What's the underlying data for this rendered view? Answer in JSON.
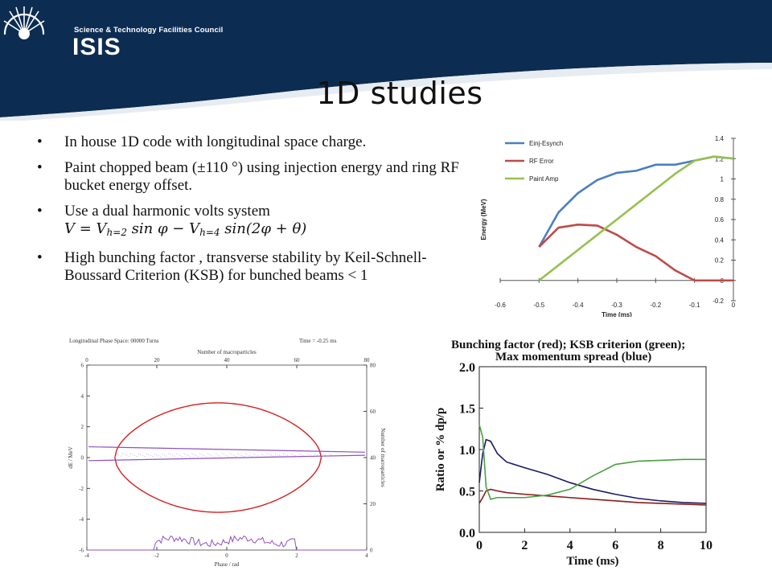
{
  "header": {
    "org_name": "Science & Technology Facilities Council",
    "org_short": "ISIS",
    "colors": {
      "navy": "#0c2c52",
      "navy_dark": "#082240",
      "white": "#ffffff"
    }
  },
  "slide": {
    "title": "1D studies",
    "bullets": [
      {
        "text": "In house 1D code with longitudinal space charge."
      },
      {
        "text": "Paint chopped beam (±110 °) using injection energy and ring RF bucket energy offset."
      },
      {
        "text": "Use a dual harmonic volts system"
      },
      {
        "text": "High bunching factor , transverse stability by Keil-Schnell-Boussard Criterion (KSB) for bunched beams < 1"
      }
    ],
    "bullet_symbol": "•",
    "equation": {
      "lhs": "V = V",
      "sub1": "h=2",
      "mid": " sin φ − V",
      "sub2": "h=4",
      "rhs": " sin(2φ + θ)"
    }
  },
  "chart_data": [
    {
      "type": "line",
      "x": [
        -0.5,
        -0.45,
        -0.4,
        -0.35,
        -0.3,
        -0.25,
        -0.2,
        -0.15,
        -0.1,
        -0.05,
        0.0
      ],
      "series": [
        {
          "name": "Einj-Esynch",
          "color": "#4a7fc0",
          "values": [
            0.33,
            0.67,
            0.86,
            0.99,
            1.06,
            1.08,
            1.14,
            1.14,
            1.18,
            1.22,
            1.2
          ]
        },
        {
          "name": "RF Error",
          "color": "#bf4a48",
          "values": [
            0.33,
            0.52,
            0.55,
            0.54,
            0.45,
            0.33,
            0.24,
            0.1,
            0.0,
            0.0,
            0.0
          ]
        },
        {
          "name": "Paint Amp",
          "color": "#96c04e",
          "values": [
            0.0,
            0.15,
            0.3,
            0.45,
            0.6,
            0.75,
            0.9,
            1.05,
            1.18,
            1.22,
            1.2
          ]
        }
      ],
      "xlabel": "Time (ms)",
      "ylabel": "Energy (MeV)",
      "xlim": [
        -0.6,
        0.0
      ],
      "ylim": [
        -0.2,
        1.4
      ],
      "x_ticks": [
        "-0.6",
        "-0.5",
        "-0.4",
        "-0.3",
        "-0.2",
        "-0.1",
        "0"
      ],
      "y_ticks": [
        "-0.2",
        "0",
        "0.2",
        "0.4",
        "0.6",
        "0.8",
        "1",
        "1.2",
        "1.4"
      ],
      "legend": "top-left",
      "grid": false
    },
    {
      "type": "scatter",
      "title": "Longitudinal Phase Space: 00000 Turns",
      "time_label": "Time = -0.25 ms",
      "xlabel": "Phase / rad",
      "ylabel": "dE / MeV",
      "top_label": "Number of macroparticles",
      "right_label": "Number of macroparticles",
      "xlim": [
        -4,
        4
      ],
      "ylim": [
        -6,
        6
      ],
      "x_ticks": [
        "-4",
        "-2",
        "0",
        "2",
        "4"
      ],
      "y_ticks": [
        "-6",
        "-4",
        "-2",
        "0",
        "2",
        "4",
        "6"
      ],
      "top_ticks": [
        "0",
        "20",
        "40",
        "60",
        "80"
      ],
      "right_ticks": [
        "0",
        "20",
        "40",
        "60",
        "80"
      ],
      "bucket_color": "#d42020",
      "beam_color": "#9050c0",
      "grid": false
    },
    {
      "type": "line",
      "title": "Bunching factor (red); KSB criterion (green);",
      "subtitle": "Max momentum spread (blue)",
      "xlabel": "Time (ms)",
      "ylabel": "Ratio or % dp/p",
      "xlim": [
        0,
        10
      ],
      "ylim": [
        0,
        2
      ],
      "x_ticks": [
        "0",
        "2",
        "4",
        "6",
        "8",
        "10"
      ],
      "y_ticks": [
        "0.0",
        "0.5",
        "1.0",
        "1.5",
        "2.0"
      ],
      "x": [
        0,
        0.15,
        0.3,
        0.5,
        0.8,
        1.2,
        2,
        3,
        4,
        5,
        6,
        7,
        8,
        9,
        10
      ],
      "series": [
        {
          "name": "Max momentum spread",
          "color": "#1a1a66",
          "values": [
            0.6,
            0.95,
            1.12,
            1.1,
            0.95,
            0.85,
            0.78,
            0.7,
            0.6,
            0.52,
            0.46,
            0.41,
            0.38,
            0.36,
            0.35
          ]
        },
        {
          "name": "Bunching factor",
          "color": "#8b1a1a",
          "values": [
            0.35,
            0.42,
            0.5,
            0.52,
            0.5,
            0.48,
            0.46,
            0.44,
            0.42,
            0.4,
            0.38,
            0.36,
            0.35,
            0.34,
            0.33
          ]
        },
        {
          "name": "KSB criterion",
          "color": "#4aa040",
          "values": [
            1.3,
            1.15,
            0.55,
            0.4,
            0.42,
            0.42,
            0.42,
            0.45,
            0.52,
            0.68,
            0.82,
            0.86,
            0.87,
            0.88,
            0.88
          ]
        }
      ],
      "grid": false
    }
  ]
}
